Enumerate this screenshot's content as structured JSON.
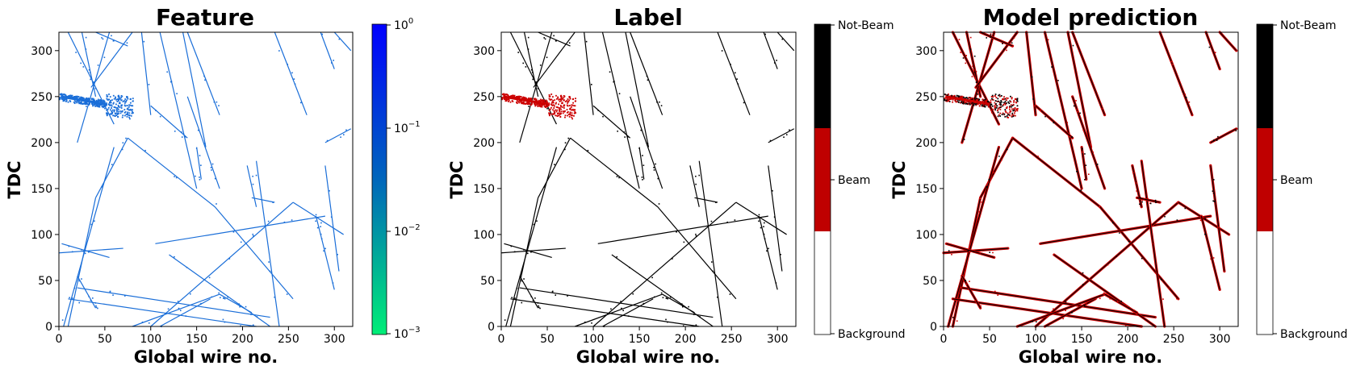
{
  "chart_data": [
    {
      "type": "heatmap",
      "title": "Feature",
      "xlabel": "Global wire no.",
      "ylabel": "TDC",
      "xlim": [
        0,
        320
      ],
      "ylim": [
        0,
        320
      ],
      "xticks": [
        "0",
        "50",
        "100",
        "150",
        "200",
        "250",
        "300"
      ],
      "yticks": [
        "0",
        "50",
        "100",
        "150",
        "200",
        "250",
        "300"
      ],
      "colorbar": {
        "scale": "log",
        "range": [
          0.001,
          1
        ],
        "ticks": [
          {
            "base": "10",
            "exp": "0"
          },
          {
            "base": "10",
            "exp": "−1"
          },
          {
            "base": "10",
            "exp": "−2"
          },
          {
            "base": "10",
            "exp": "−3"
          }
        ],
        "colors": [
          "#00ee77",
          "#0066bb",
          "#0000ff"
        ]
      },
      "track_color": "#1a6ed8",
      "beam_color": "#1a6ed8"
    },
    {
      "type": "heatmap",
      "title": "Label",
      "xlabel": "Global wire no.",
      "ylabel": "TDC",
      "xlim": [
        0,
        320
      ],
      "ylim": [
        0,
        320
      ],
      "xticks": [
        "0",
        "50",
        "100",
        "150",
        "200",
        "250",
        "300"
      ],
      "yticks": [
        "0",
        "50",
        "100",
        "150",
        "200",
        "250",
        "300"
      ],
      "colorbar": {
        "scale": "categorical",
        "labels": [
          "Not-Beam",
          "Beam",
          "Background"
        ],
        "colors": [
          "#000000",
          "#bf0000",
          "#ffffff"
        ]
      },
      "track_color": "#000000",
      "beam_color": "#cc0000"
    },
    {
      "type": "heatmap",
      "title": "Model prediction",
      "xlabel": "Global wire no.",
      "ylabel": "TDC",
      "xlim": [
        0,
        320
      ],
      "ylim": [
        0,
        320
      ],
      "xticks": [
        "0",
        "50",
        "100",
        "150",
        "200",
        "250",
        "300"
      ],
      "yticks": [
        "0",
        "50",
        "100",
        "150",
        "200",
        "250",
        "300"
      ],
      "colorbar": {
        "scale": "categorical",
        "labels": [
          "Not-Beam",
          "Beam",
          "Background"
        ],
        "colors": [
          "#000000",
          "#bf0000",
          "#ffffff"
        ]
      },
      "track_color": "#000000",
      "beam_color": "#cc0000"
    }
  ],
  "tracks": [
    [
      [
        10,
        320
      ],
      [
        60,
        220
      ]
    ],
    [
      [
        25,
        320
      ],
      [
        40,
        250
      ]
    ],
    [
      [
        55,
        320
      ],
      [
        20,
        200
      ]
    ],
    [
      [
        80,
        320
      ],
      [
        35,
        260
      ]
    ],
    [
      [
        90,
        320
      ],
      [
        100,
        230
      ]
    ],
    [
      [
        110,
        320
      ],
      [
        150,
        150
      ]
    ],
    [
      [
        135,
        320
      ],
      [
        160,
        195
      ]
    ],
    [
      [
        140,
        320
      ],
      [
        175,
        230
      ]
    ],
    [
      [
        235,
        320
      ],
      [
        270,
        230
      ]
    ],
    [
      [
        285,
        320
      ],
      [
        300,
        280
      ]
    ],
    [
      [
        300,
        320
      ],
      [
        318,
        300
      ]
    ],
    [
      [
        290,
        200
      ],
      [
        318,
        215
      ]
    ],
    [
      [
        40,
        320
      ],
      [
        75,
        305
      ]
    ],
    [
      [
        100,
        240
      ],
      [
        140,
        205
      ]
    ],
    [
      [
        150,
        195
      ],
      [
        155,
        160
      ]
    ],
    [
      [
        10,
        0
      ],
      [
        40,
        140
      ]
    ],
    [
      [
        40,
        140
      ],
      [
        75,
        205
      ]
    ],
    [
      [
        5,
        0
      ],
      [
        60,
        195
      ]
    ],
    [
      [
        75,
        205
      ],
      [
        170,
        130
      ]
    ],
    [
      [
        170,
        130
      ],
      [
        255,
        30
      ]
    ],
    [
      [
        105,
        90
      ],
      [
        290,
        120
      ]
    ],
    [
      [
        100,
        0
      ],
      [
        255,
        135
      ]
    ],
    [
      [
        255,
        135
      ],
      [
        310,
        100
      ]
    ],
    [
      [
        10,
        30
      ],
      [
        215,
        0
      ]
    ],
    [
      [
        20,
        42
      ],
      [
        230,
        10
      ]
    ],
    [
      [
        120,
        78
      ],
      [
        230,
        0
      ]
    ],
    [
      [
        0,
        80
      ],
      [
        70,
        85
      ]
    ],
    [
      [
        140,
        250
      ],
      [
        175,
        150
      ]
    ],
    [
      [
        215,
        180
      ],
      [
        240,
        0
      ]
    ],
    [
      [
        290,
        175
      ],
      [
        305,
        60
      ]
    ],
    [
      [
        205,
        175
      ],
      [
        215,
        130
      ]
    ],
    [
      [
        210,
        140
      ],
      [
        235,
        135
      ]
    ],
    [
      [
        110,
        0
      ],
      [
        165,
        30
      ]
    ],
    [
      [
        80,
        0
      ],
      [
        175,
        35
      ]
    ],
    [
      [
        175,
        35
      ],
      [
        210,
        15
      ]
    ],
    [
      [
        20,
        55
      ],
      [
        40,
        20
      ]
    ],
    [
      [
        3,
        90
      ],
      [
        55,
        75
      ]
    ],
    [
      [
        280,
        120
      ],
      [
        300,
        40
      ]
    ]
  ],
  "beam_region": {
    "x": [
      0,
      80
    ],
    "y": [
      222,
      255
    ],
    "center_y0": 250,
    "center_y1": 238
  }
}
